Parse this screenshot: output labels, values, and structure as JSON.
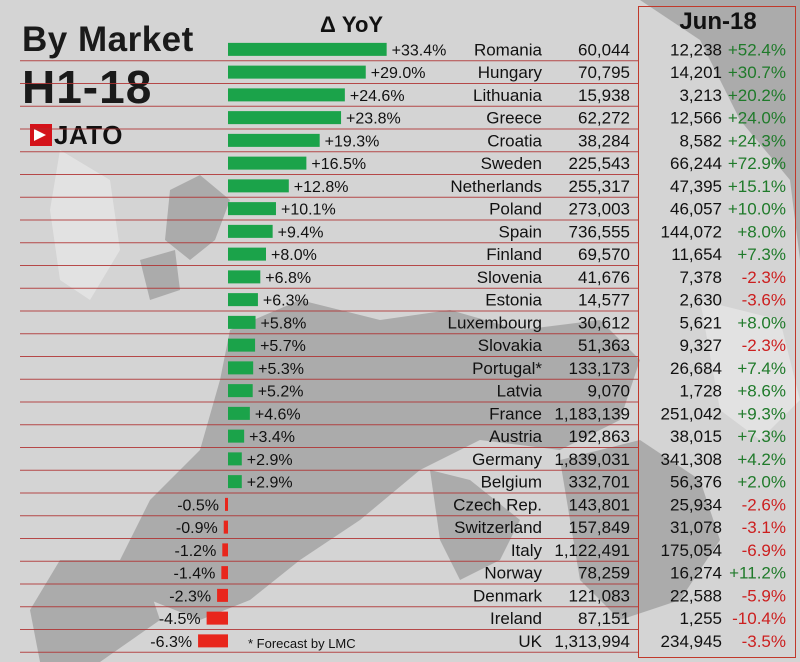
{
  "header": {
    "title": "By Market",
    "subtitle": "H1-18",
    "logo_text": "JATO",
    "yoy_label": "Δ YoY",
    "month_label": "Jun-18",
    "footnote": "* Forecast by LMC"
  },
  "colors": {
    "positive": "#1ba34a",
    "negative": "#e8261c",
    "pos_text": "#1f7a2a",
    "neg_text": "#cc1f1f",
    "rule": "#b03030"
  },
  "chart_data": {
    "type": "bar",
    "title": "By Market",
    "subtitle": "H1-18",
    "categories": [
      "Romania",
      "Hungary",
      "Lithuania",
      "Greece",
      "Croatia",
      "Sweden",
      "Netherlands",
      "Poland",
      "Spain",
      "Finland",
      "Slovenia",
      "Estonia",
      "Luxembourg",
      "Slovakia",
      "Portugal*",
      "Latvia",
      "France",
      "Austria",
      "Germany",
      "Belgium",
      "Czech Rep.",
      "Switzerland",
      "Italy",
      "Norway",
      "Denmark",
      "Ireland",
      "UK"
    ],
    "yoy_labels": [
      "+33.4%",
      "+29.0%",
      "+24.6%",
      "+23.8%",
      "+19.3%",
      "+16.5%",
      "+12.8%",
      "+10.1%",
      "+9.4%",
      "+8.0%",
      "+6.8%",
      "+6.3%",
      "+5.8%",
      "+5.7%",
      "+5.3%",
      "+5.2%",
      "+4.6%",
      "+3.4%",
      "+2.9%",
      "+2.9%",
      "-0.5%",
      "-0.9%",
      "-1.2%",
      "-1.4%",
      "-2.3%",
      "-4.5%",
      "-6.3%"
    ],
    "yoy_values": [
      33.4,
      29.0,
      24.6,
      23.8,
      19.3,
      16.5,
      12.8,
      10.1,
      9.4,
      8.0,
      6.8,
      6.3,
      5.8,
      5.7,
      5.3,
      5.2,
      4.6,
      3.4,
      2.9,
      2.9,
      -0.5,
      -0.9,
      -1.2,
      -1.4,
      -2.3,
      -4.5,
      -6.3
    ],
    "h1_volume": [
      "60,044",
      "70,795",
      "15,938",
      "62,272",
      "38,284",
      "225,543",
      "255,317",
      "273,003",
      "736,555",
      "69,570",
      "41,676",
      "14,577",
      "30,612",
      "51,363",
      "133,173",
      "9,070",
      "1,183,139",
      "192,863",
      "1,839,031",
      "332,701",
      "143,801",
      "157,849",
      "1,122,491",
      "78,259",
      "121,083",
      "87,151",
      "1,313,994"
    ],
    "jun_volume": [
      "12,238",
      "14,201",
      "3,213",
      "12,566",
      "8,582",
      "66,244",
      "47,395",
      "46,057",
      "144,072",
      "11,654",
      "7,378",
      "2,630",
      "5,621",
      "9,327",
      "26,684",
      "1,728",
      "251,042",
      "38,015",
      "341,308",
      "56,376",
      "25,934",
      "31,078",
      "175,054",
      "16,274",
      "22,588",
      "1,255",
      "234,945"
    ],
    "jun_change": [
      "+52.4%",
      "+30.7%",
      "+20.2%",
      "+24.0%",
      "+24.3%",
      "+72.9%",
      "+15.1%",
      "+10.0%",
      "+8.0%",
      "+7.3%",
      "-2.3%",
      "-3.6%",
      "+8.0%",
      "-2.3%",
      "+7.4%",
      "+8.6%",
      "+9.3%",
      "+7.3%",
      "+4.2%",
      "+2.0%",
      "-2.6%",
      "-3.1%",
      "-6.9%",
      "+11.2%",
      "-5.9%",
      "-10.4%",
      "-3.5%"
    ]
  }
}
